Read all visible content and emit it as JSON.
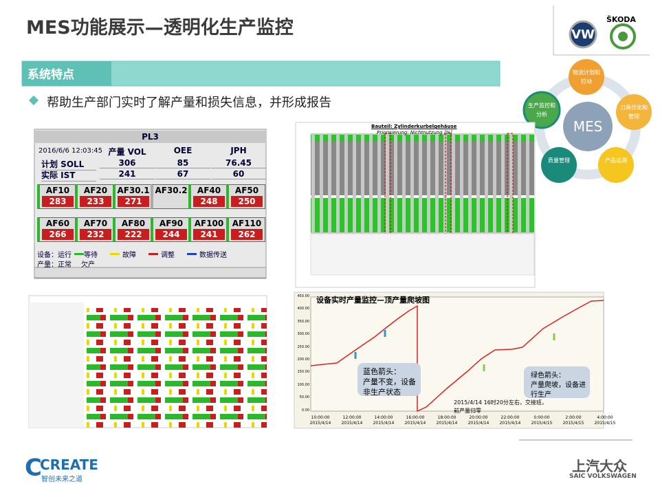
{
  "header": {
    "title": "MES功能展示—透明化生产监控",
    "brand": "ŠKODA"
  },
  "section": {
    "title": "系统特点",
    "bullet": "帮助生产部门实时了解产量和损失信息，并形成报告"
  },
  "pl3": {
    "title": "PL3",
    "time": "2016/6/6 12:03:45",
    "columns": [
      "产量 VOL",
      "OEE",
      "JPH"
    ],
    "rows": [
      [
        "计划 SOLL",
        "306",
        "85",
        "76.45"
      ],
      [
        "实际 IST",
        "241",
        "67",
        "60"
      ]
    ],
    "stations": [
      {
        "name": "AF10",
        "value": "283"
      },
      {
        "name": "AF20",
        "value": "233"
      },
      {
        "name": "AF30.1",
        "value": "271"
      },
      {
        "name": "AF30.2"
      },
      {
        "name": "AF40",
        "value": "248"
      },
      {
        "name": "AF50",
        "value": "250"
      },
      {
        "name": "AF60",
        "value": "266"
      },
      {
        "name": "AF70",
        "value": "232"
      },
      {
        "name": "AF80",
        "value": "222"
      },
      {
        "name": "AF90",
        "value": "244"
      },
      {
        "name": "AF100",
        "value": "241"
      },
      {
        "name": "AF110",
        "value": "262"
      }
    ],
    "legend1": [
      "设备：运行",
      "等待",
      "故障",
      "调整",
      "数据传送"
    ],
    "legend2": [
      "产量：正常",
      "欠产"
    ]
  },
  "barchart": {
    "title": "Bauteil: Zylinderkurbelgehäuse",
    "subtitle": "Priorisierung: Nichtnutzung [%]"
  },
  "mes": {
    "center": "MES",
    "nodes": [
      "物流计划和拉动",
      "刀具优化和管理",
      "产品追溯",
      "质量管理",
      "生产监控和分析"
    ]
  },
  "linechart": {
    "title": "设备实时产量监控—顶产量爬坡图",
    "yticks": [
      "450.00",
      "400.00",
      "350.00",
      "300.00",
      "250.00",
      "200.00",
      "150.00",
      "100.00",
      "50.00",
      "0.00"
    ],
    "xticks": [
      [
        "10:00:00",
        "2015/4/14"
      ],
      [
        "12:00:00",
        "2015/4/14"
      ],
      [
        "14:00:00",
        "2015/4/14"
      ],
      [
        "16:00:00",
        "2015/4/14"
      ],
      [
        "18:00:00",
        "2015/4/14"
      ],
      [
        "20:00:00",
        "2015/4/14"
      ],
      [
        "22:00:00",
        "2015/4/14"
      ],
      [
        "0:00:00",
        "2015/4/15"
      ],
      [
        "2:00:00",
        "2015/4/15"
      ],
      [
        "4:00:00",
        "2015/4/15"
      ]
    ],
    "notes": [
      [
        "蓝色箭头：",
        "产量不变，设备",
        "非生产状态"
      ],
      [
        "绿色箭头：",
        "产量爬坡，设备进",
        "行生产"
      ],
      [
        "2015/4/14 16时20分左右，交接班，",
        "前产量归零"
      ]
    ]
  },
  "footer": {
    "left": "CREATE",
    "left_sub": "智创未来之道",
    "right": "上汽大众",
    "right_sub": "SAIC VOLKSWAGEN"
  }
}
